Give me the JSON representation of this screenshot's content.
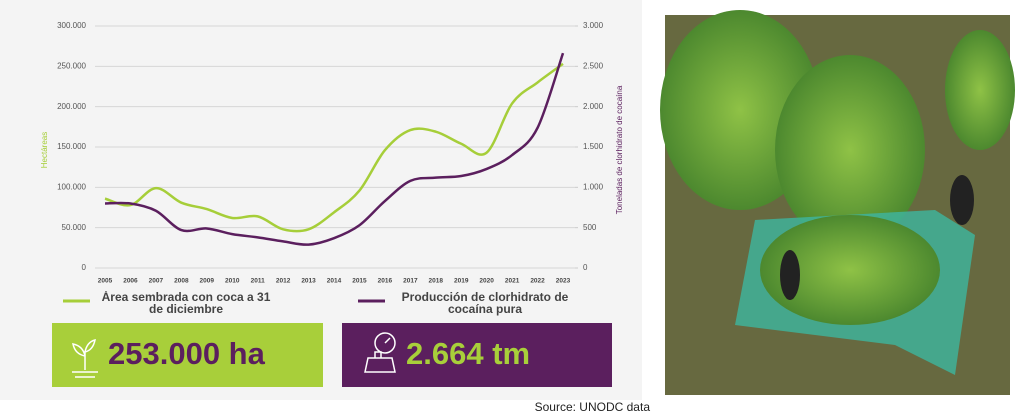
{
  "chart_data": {
    "type": "line",
    "y_label": "Hectáreas",
    "y2_label": "Toneladas de clorhidrato de cocaína",
    "categories": [
      "2005",
      "2006",
      "2007",
      "2008",
      "2009",
      "2010",
      "2011",
      "2012",
      "2013",
      "2014",
      "2015",
      "2016",
      "2017",
      "2018",
      "2019",
      "2020",
      "2021",
      "2022",
      "2023"
    ],
    "series": [
      {
        "name": "Área sembrada con coca a 31 de diciembre",
        "color": "#a6ce39",
        "values": [
          86000,
          78000,
          99000,
          81000,
          73000,
          62000,
          64000,
          48000,
          48000,
          69000,
          96000,
          146000,
          171000,
          169000,
          154000,
          143000,
          204000,
          230000,
          253000
        ]
      },
      {
        "name": "Producción de clorhidrato de cocaína pura",
        "color": "#5b1f5e",
        "axis": "y2",
        "values": [
          800,
          800,
          710,
          470,
          490,
          420,
          380,
          330,
          290,
          370,
          530,
          830,
          1080,
          1120,
          1140,
          1228,
          1400,
          1738,
          2664
        ]
      }
    ],
    "ylim": [
      0,
      300000
    ],
    "yticks": [
      0,
      {
        "value": 50000,
        "label": "50.000"
      },
      {
        "value": 100000,
        "label": "100.000"
      },
      {
        "value": 150000,
        "label": "150.000"
      },
      {
        "value": 200000,
        "label": "200.000"
      },
      {
        "value": 250000,
        "label": "250.000"
      },
      {
        "value": 300000,
        "label": "300.000"
      }
    ],
    "y2lim": [
      0,
      3000
    ],
    "y2ticks": [
      0,
      500,
      {
        "value": 1000,
        "label": "1.000"
      },
      {
        "value": 1500,
        "label": "1.500"
      },
      {
        "value": 2000,
        "label": "2.000"
      },
      {
        "value": 2500,
        "label": "2.500"
      },
      {
        "value": 3000,
        "label": "3.000"
      }
    ],
    "grid": true
  },
  "callouts": [
    "253.000 ha",
    "2.664 tm"
  ],
  "source": "Source: UNODC data"
}
